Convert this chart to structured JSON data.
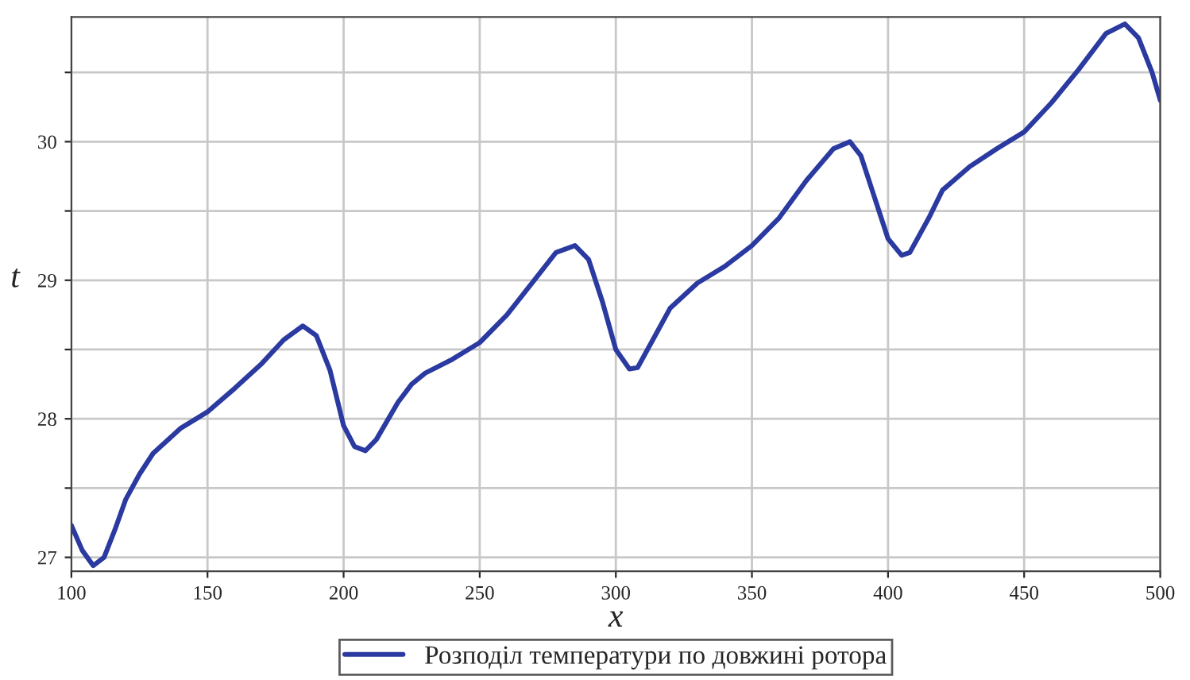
{
  "chart_data": {
    "type": "line",
    "xlabel": "x",
    "ylabel": "t",
    "xlim": [
      100,
      500
    ],
    "ylim": [
      26.9,
      30.9
    ],
    "xticks": [
      100,
      150,
      200,
      250,
      300,
      350,
      400,
      450,
      500
    ],
    "yticks": [
      27,
      {
        "value": 27.5,
        "label": null
      },
      28,
      {
        "value": 28.5,
        "label": null
      },
      29,
      {
        "value": 29.5,
        "label": null
      },
      30,
      {
        "value": 30.5,
        "label": null
      }
    ],
    "grid": true,
    "legend": "bottom",
    "line_style": "solid",
    "marker": "none",
    "series": [
      {
        "name": "Розподіл температури по довжині ротора",
        "color": "#2b3aa0",
        "x": [
          100,
          104,
          108,
          112,
          116,
          120,
          125,
          130,
          140,
          150,
          160,
          170,
          178,
          185,
          190,
          195,
          200,
          204,
          208,
          212,
          220,
          225,
          230,
          240,
          250,
          260,
          270,
          278,
          285,
          290,
          295,
          300,
          305,
          308,
          315,
          320,
          330,
          340,
          350,
          360,
          370,
          380,
          386,
          390,
          395,
          400,
          405,
          408,
          415,
          420,
          430,
          440,
          450,
          460,
          470,
          480,
          487,
          492,
          497,
          500
        ],
        "values": [
          27.23,
          27.05,
          26.94,
          27.0,
          27.2,
          27.42,
          27.6,
          27.75,
          27.93,
          28.05,
          28.22,
          28.4,
          28.57,
          28.67,
          28.6,
          28.35,
          27.95,
          27.8,
          27.77,
          27.85,
          28.12,
          28.25,
          28.33,
          28.43,
          28.55,
          28.75,
          29.0,
          29.2,
          29.25,
          29.15,
          28.85,
          28.5,
          28.36,
          28.37,
          28.62,
          28.8,
          28.98,
          29.1,
          29.25,
          29.45,
          29.72,
          29.95,
          30.0,
          29.9,
          29.6,
          29.3,
          29.18,
          29.2,
          29.45,
          29.65,
          29.82,
          29.95,
          30.07,
          30.28,
          30.52,
          30.78,
          30.85,
          30.75,
          30.5,
          30.3
        ]
      }
    ]
  }
}
